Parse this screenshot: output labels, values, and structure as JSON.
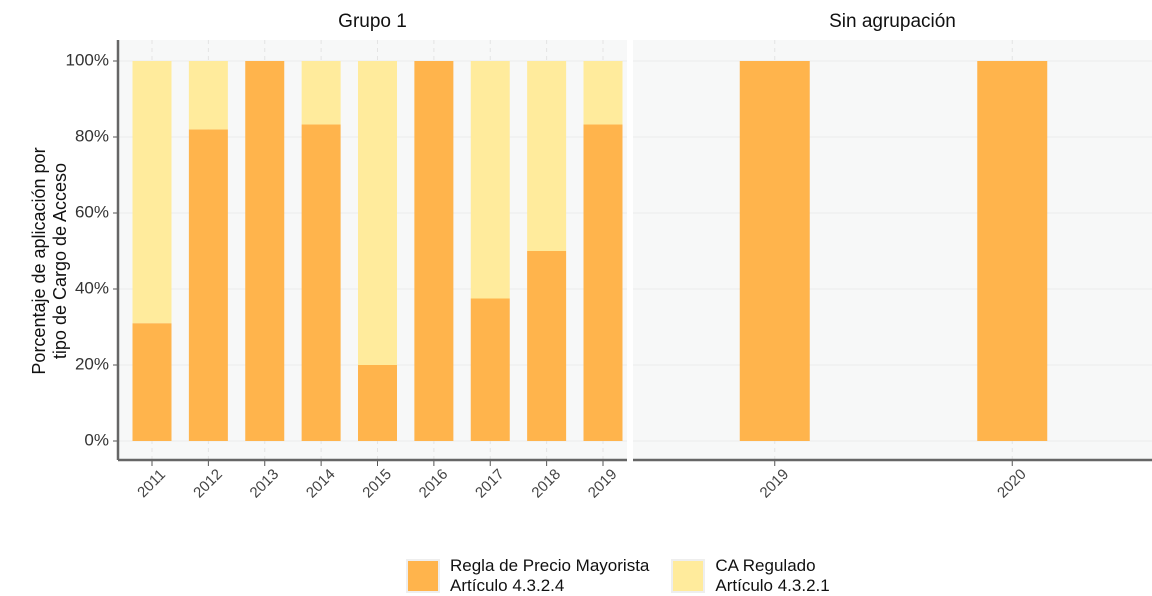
{
  "chart_data": [
    {
      "type": "stacked_bar",
      "title": "Grupo 1",
      "y_label": "Porcentaje de aplicación por\ntipo de Cargo de Acceso",
      "categories": [
        "2011",
        "2012",
        "2013",
        "2014",
        "2015",
        "2016",
        "2017",
        "2018",
        "2019"
      ],
      "series": [
        {
          "name": "Regla de Precio Mayorista\n Artículo 4.3.2.4",
          "color": "#ffb44c",
          "values": [
            31,
            82,
            100,
            83.3,
            20,
            100,
            37.5,
            50,
            83.3
          ]
        },
        {
          "name": "CA Regulado\n Artículo 4.3.2.1",
          "color": "#ffeb9c",
          "values": [
            69,
            18,
            0,
            16.7,
            80,
            0,
            62.5,
            50,
            16.7
          ]
        }
      ],
      "ylim": [
        0,
        100
      ],
      "yticks": [
        {
          "value": 0,
          "label": "0%"
        },
        {
          "value": 20,
          "label": "20%"
        },
        {
          "value": 40,
          "label": "40%"
        },
        {
          "value": 60,
          "label": "60%"
        },
        {
          "value": 80,
          "label": "80%"
        },
        {
          "value": 100,
          "label": "100%"
        }
      ],
      "grid": true
    },
    {
      "type": "stacked_bar",
      "title": "Sin agrupación",
      "categories": [
        "2019",
        "2020"
      ],
      "series": [
        {
          "name": "Regla de Precio Mayorista\n Artículo 4.3.2.4",
          "color": "#ffb44c",
          "values": [
            100,
            100
          ]
        },
        {
          "name": "CA Regulado\n Artículo 4.3.2.1",
          "color": "#ffeb9c",
          "values": [
            0,
            0
          ]
        }
      ],
      "ylim": [
        0,
        100
      ],
      "yticks": [
        0,
        20,
        40,
        60,
        80,
        100
      ],
      "grid": true
    }
  ]
}
